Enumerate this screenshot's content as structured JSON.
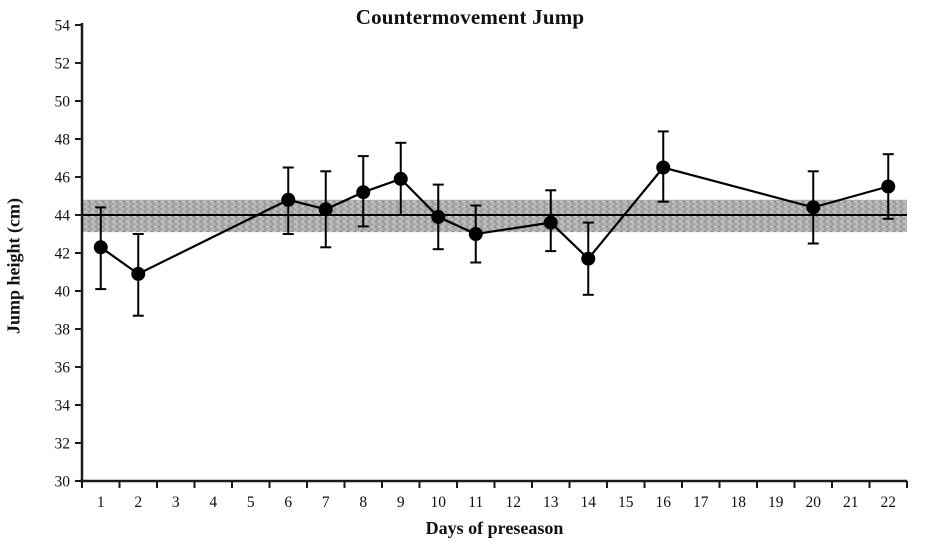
{
  "figure": {
    "title": "Countermovement Jump",
    "xlabel": "Days of preseason",
    "ylabel": "Jump height (cm)"
  },
  "chart_data": {
    "type": "line",
    "title": "Countermovement Jump",
    "xlabel": "Days of preseason",
    "ylabel": "Jump height (cm)",
    "x_categories": [
      1,
      2,
      3,
      4,
      5,
      6,
      7,
      8,
      9,
      10,
      11,
      12,
      13,
      14,
      15,
      16,
      17,
      18,
      19,
      20,
      21,
      22
    ],
    "ylim": [
      30,
      54
    ],
    "ytick_step": 2,
    "grid": false,
    "legend": "none",
    "marker": "filled-circle",
    "series": [
      {
        "name": "mean-jump-height-with-sd-error-bars",
        "color": "#000000",
        "points": [
          {
            "day": 1,
            "value": 42.3,
            "err_low": 40.1,
            "err_high": 44.4
          },
          {
            "day": 2,
            "value": 40.9,
            "err_low": 38.7,
            "err_high": 43.0
          },
          {
            "day": 6,
            "value": 44.8,
            "err_low": 43.0,
            "err_high": 46.5
          },
          {
            "day": 7,
            "value": 44.3,
            "err_low": 42.3,
            "err_high": 46.3
          },
          {
            "day": 8,
            "value": 45.2,
            "err_low": 43.4,
            "err_high": 47.1
          },
          {
            "day": 9,
            "value": 45.9,
            "err_low": 44.0,
            "err_high": 47.8
          },
          {
            "day": 10,
            "value": 43.9,
            "err_low": 42.2,
            "err_high": 45.6
          },
          {
            "day": 11,
            "value": 43.0,
            "err_low": 41.5,
            "err_high": 44.5
          },
          {
            "day": 13,
            "value": 43.6,
            "err_low": 42.1,
            "err_high": 45.3
          },
          {
            "day": 14,
            "value": 41.7,
            "err_low": 39.8,
            "err_high": 43.6
          },
          {
            "day": 16,
            "value": 46.5,
            "err_low": 44.7,
            "err_high": 48.4
          },
          {
            "day": 20,
            "value": 44.4,
            "err_low": 42.5,
            "err_high": 46.3
          },
          {
            "day": 22,
            "value": 45.5,
            "err_low": 43.8,
            "err_high": 47.2
          }
        ]
      }
    ],
    "reference_band": {
      "low": 43.1,
      "high": 44.8,
      "mean_line": 44.0,
      "style": "stippled-gray"
    },
    "colors": {
      "series": "#000000",
      "marker": "#000000",
      "mean_line": "#000000",
      "axis": "#1a1a1a",
      "band_base": "#a9a9a9",
      "band_dot_light": "#cfcfcf",
      "band_dot_dark": "#8c8c8c"
    }
  }
}
